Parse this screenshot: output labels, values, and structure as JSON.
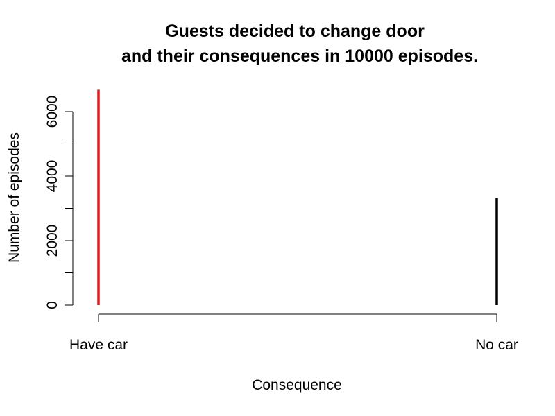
{
  "chart_data": {
    "type": "bar",
    "title_lines": [
      "Guests decided to change door",
      "and their consequences in 10000 episodes."
    ],
    "xlabel": "Consequence",
    "ylabel": "Number of episodes",
    "categories": [
      "Have car",
      "No car"
    ],
    "values": [
      6680,
      3320
    ],
    "colors": [
      "#e31a1c",
      "#000000"
    ],
    "yticks": [
      0,
      2000,
      4000,
      6000
    ],
    "yminor": [
      1000,
      3000,
      5000
    ],
    "ylim": [
      0,
      6700
    ],
    "grid": false,
    "legend": false
  }
}
